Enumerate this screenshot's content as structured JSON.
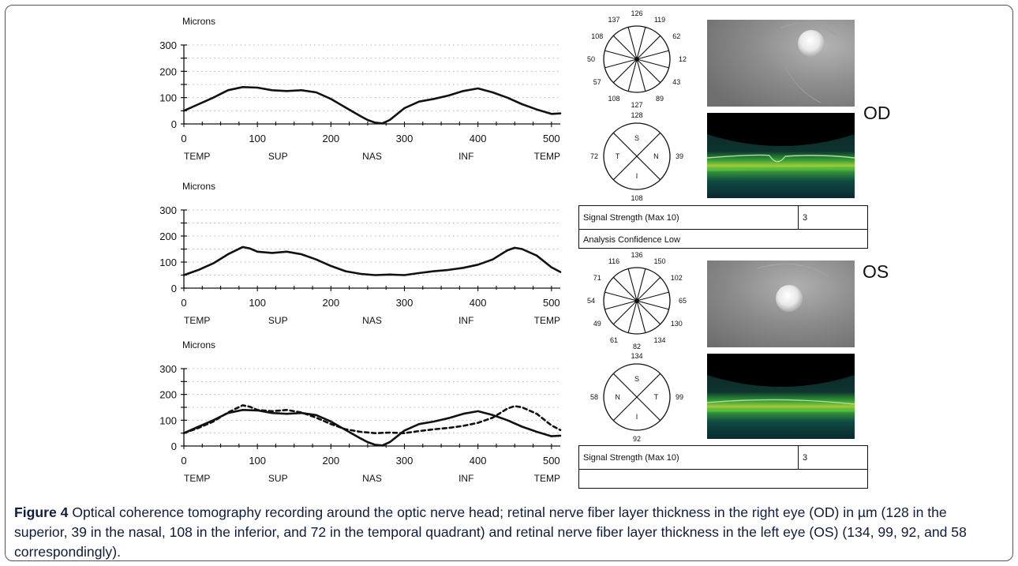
{
  "figure": {
    "caption_label": "Figure 4",
    "caption_text": " Optical coherence tomography recording around the optic nerve head; retinal nerve fiber layer thickness in the right eye (OD) in µm (128 in the superior, 39 in the nasal, 108 in the inferior, and 72 in the temporal quadrant) and retinal nerve fiber layer thickness in the left eye (OS) (134, 99, 92, and 58 correspondingly)."
  },
  "chart_data": [
    {
      "type": "line",
      "ylabel": "Microns",
      "ylim": [
        0,
        300
      ],
      "xlim": [
        0,
        512
      ],
      "y_ticks": [
        "0",
        "100",
        "200",
        "300"
      ],
      "x_ticks": [
        "0",
        "100",
        "200",
        "300",
        "400",
        "500"
      ],
      "x_regions": [
        "TEMP",
        "SUP",
        "NAS",
        "INF",
        "TEMP"
      ],
      "grid": true,
      "series": [
        {
          "style": "solid",
          "x": [
            0,
            20,
            40,
            60,
            80,
            100,
            120,
            140,
            160,
            180,
            200,
            220,
            240,
            250,
            260,
            270,
            280,
            300,
            320,
            340,
            360,
            380,
            400,
            420,
            440,
            460,
            480,
            500,
            512
          ],
          "y": [
            50,
            75,
            100,
            128,
            140,
            138,
            128,
            125,
            128,
            120,
            95,
            62,
            30,
            15,
            5,
            2,
            15,
            60,
            85,
            95,
            108,
            125,
            135,
            120,
            100,
            75,
            55,
            38,
            40
          ]
        }
      ]
    },
    {
      "type": "line",
      "ylabel": "Microns",
      "ylim": [
        0,
        300
      ],
      "xlim": [
        0,
        512
      ],
      "y_ticks": [
        "0",
        "100",
        "200",
        "300"
      ],
      "x_ticks": [
        "0",
        "100",
        "200",
        "300",
        "400",
        "500"
      ],
      "x_regions": [
        "TEMP",
        "SUP",
        "NAS",
        "INF",
        "TEMP"
      ],
      "grid": true,
      "series": [
        {
          "style": "solid",
          "x": [
            0,
            20,
            40,
            60,
            80,
            90,
            100,
            120,
            140,
            160,
            180,
            200,
            220,
            240,
            260,
            280,
            300,
            320,
            340,
            360,
            380,
            400,
            420,
            440,
            450,
            460,
            480,
            500,
            512
          ],
          "y": [
            50,
            70,
            95,
            130,
            158,
            152,
            140,
            135,
            140,
            130,
            110,
            85,
            65,
            55,
            50,
            52,
            50,
            58,
            65,
            70,
            78,
            90,
            110,
            145,
            155,
            150,
            125,
            80,
            62
          ]
        }
      ]
    },
    {
      "type": "line",
      "ylabel": "Microns",
      "ylim": [
        0,
        300
      ],
      "xlim": [
        0,
        512
      ],
      "y_ticks": [
        "0",
        "100",
        "200",
        "300"
      ],
      "x_ticks": [
        "0",
        "100",
        "200",
        "300",
        "400",
        "500"
      ],
      "x_regions": [
        "TEMP",
        "SUP",
        "NAS",
        "INF",
        "TEMP"
      ],
      "grid": true,
      "series": [
        {
          "style": "solid",
          "x": [
            0,
            20,
            40,
            60,
            80,
            100,
            120,
            140,
            160,
            180,
            200,
            220,
            240,
            250,
            260,
            270,
            280,
            300,
            320,
            340,
            360,
            380,
            400,
            420,
            440,
            460,
            480,
            500,
            512
          ],
          "y": [
            50,
            75,
            100,
            128,
            140,
            138,
            128,
            125,
            128,
            120,
            95,
            62,
            30,
            15,
            5,
            2,
            15,
            60,
            85,
            95,
            108,
            125,
            135,
            120,
            100,
            75,
            55,
            38,
            40
          ]
        },
        {
          "style": "dashed",
          "x": [
            0,
            20,
            40,
            60,
            80,
            90,
            100,
            120,
            140,
            160,
            180,
            200,
            220,
            240,
            260,
            280,
            300,
            320,
            340,
            360,
            380,
            400,
            420,
            440,
            450,
            460,
            480,
            500,
            512
          ],
          "y": [
            50,
            70,
            95,
            130,
            158,
            152,
            140,
            135,
            140,
            130,
            110,
            85,
            65,
            55,
            50,
            52,
            50,
            58,
            65,
            70,
            78,
            90,
            110,
            145,
            155,
            150,
            125,
            80,
            62
          ]
        }
      ]
    }
  ],
  "od": {
    "label": "OD",
    "clock_values": [
      "126",
      "119",
      "62",
      "12",
      "43",
      "89",
      "127",
      "108",
      "57",
      "50",
      "108",
      "137"
    ],
    "quadrants": {
      "S": "S",
      "N": "N",
      "I": "I",
      "T": "T"
    },
    "quadrant_values": {
      "top": "128",
      "right": "39",
      "bottom": "108",
      "left": "72"
    },
    "signal_label": "Signal Strength (Max 10)",
    "signal_value": "3",
    "confidence": "Analysis Confidence Low"
  },
  "os": {
    "label": "OS",
    "clock_values": [
      "136",
      "150",
      "102",
      "65",
      "130",
      "134",
      "82",
      "61",
      "49",
      "54",
      "71",
      "116"
    ],
    "quadrants": {
      "S": "S",
      "N": "N",
      "I": "I",
      "T": "T"
    },
    "quadrant_values": {
      "top": "134",
      "right": "99",
      "bottom": "92",
      "left": "58"
    },
    "signal_label": "Signal Strength (Max 10)",
    "signal_value": "3",
    "confidence": ""
  },
  "colors": {
    "fundus": "#8a8a8a",
    "oct_bg": "#071a1c",
    "oct_layer": "#3fae3a",
    "caption": "#0f1c3a"
  }
}
